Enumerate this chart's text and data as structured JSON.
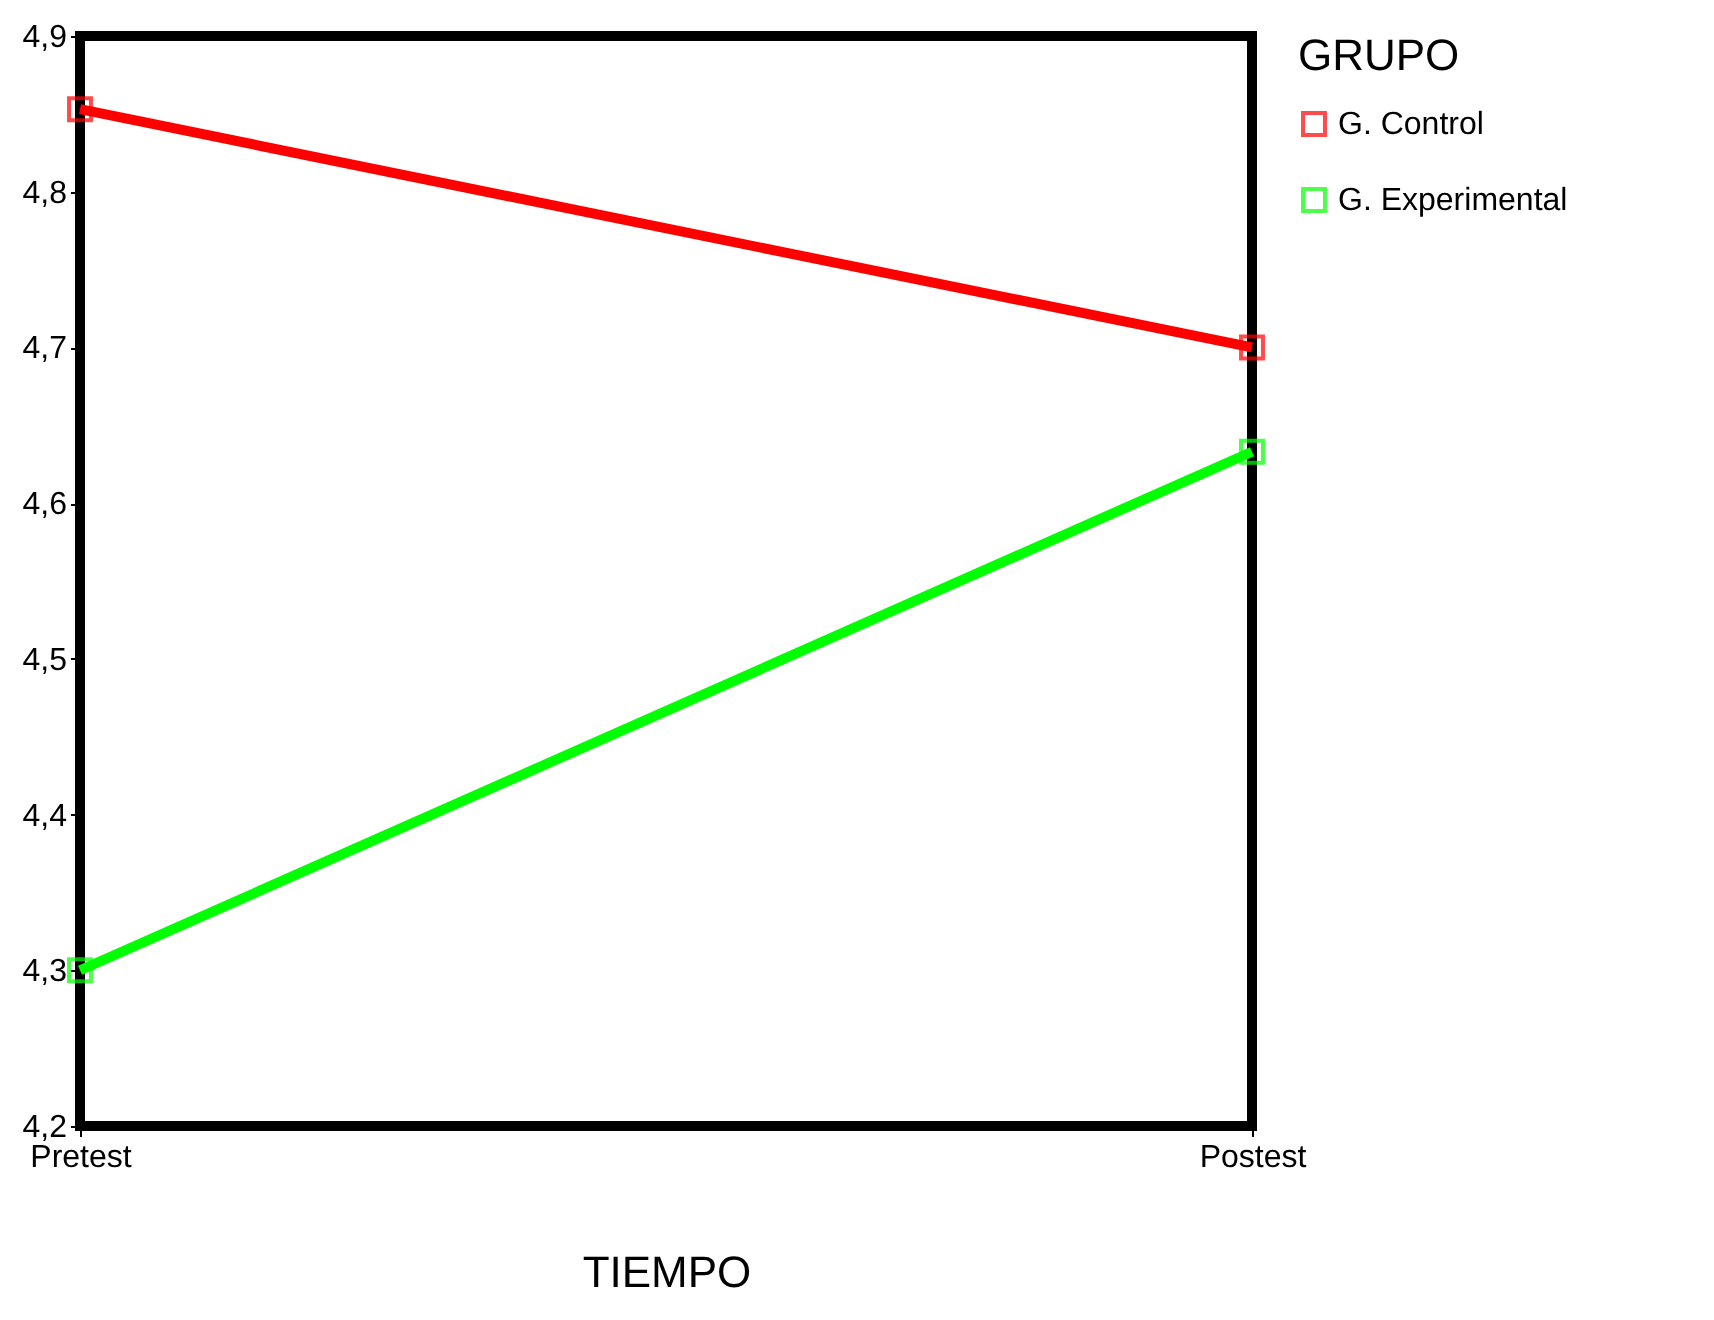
{
  "chart_data": {
    "type": "line",
    "xlabel": "TIEMPO",
    "legend_title": "GRUPO",
    "categories": [
      "Pretest",
      "Postest"
    ],
    "series": [
      {
        "name": "G. Control",
        "color": "#ff0000",
        "values": [
          4.853,
          4.7
        ]
      },
      {
        "name": "G. Experimental",
        "color": "#00ff00",
        "values": [
          4.3,
          4.633
        ]
      }
    ],
    "ylim": [
      4.2,
      4.9
    ],
    "yticks": [
      {
        "value": 4.2,
        "label": "4,2"
      },
      {
        "value": 4.3,
        "label": "4,3"
      },
      {
        "value": 4.4,
        "label": "4,4"
      },
      {
        "value": 4.5,
        "label": "4,5"
      },
      {
        "value": 4.6,
        "label": "4,6"
      },
      {
        "value": 4.7,
        "label": "4,7"
      },
      {
        "value": 4.8,
        "label": "4,8"
      },
      {
        "value": 4.9,
        "label": "4,9"
      }
    ],
    "grid": false,
    "legend": "right",
    "marker": "square",
    "line_style": "solid"
  }
}
